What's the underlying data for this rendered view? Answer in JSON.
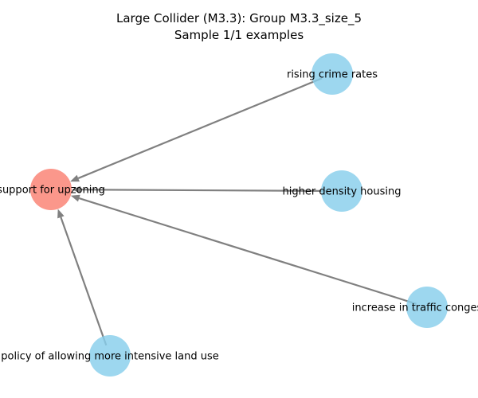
{
  "figure": {
    "title_line1": "Large Collider (M3.3): Group M3.3_size_5",
    "title_line2": "Sample 1/1 examples"
  },
  "colors": {
    "target_node": "#fa8072",
    "source_node": "#87ceeb",
    "edge": "#808080",
    "background": "#ffffff"
  },
  "nodes": [
    {
      "id": "upzoning",
      "label": "support for upzoning",
      "role": "target"
    },
    {
      "id": "crime",
      "label": "rising crime rates",
      "role": "source"
    },
    {
      "id": "density",
      "label": "higher density housing",
      "role": "source"
    },
    {
      "id": "traffic",
      "label": "increase in traffic congestion",
      "role": "source"
    },
    {
      "id": "policy",
      "label": "policy of allowing more intensive land use",
      "role": "source"
    }
  ],
  "edges": [
    {
      "from": "crime",
      "to": "upzoning"
    },
    {
      "from": "density",
      "to": "upzoning"
    },
    {
      "from": "traffic",
      "to": "upzoning"
    },
    {
      "from": "policy",
      "to": "upzoning"
    }
  ]
}
